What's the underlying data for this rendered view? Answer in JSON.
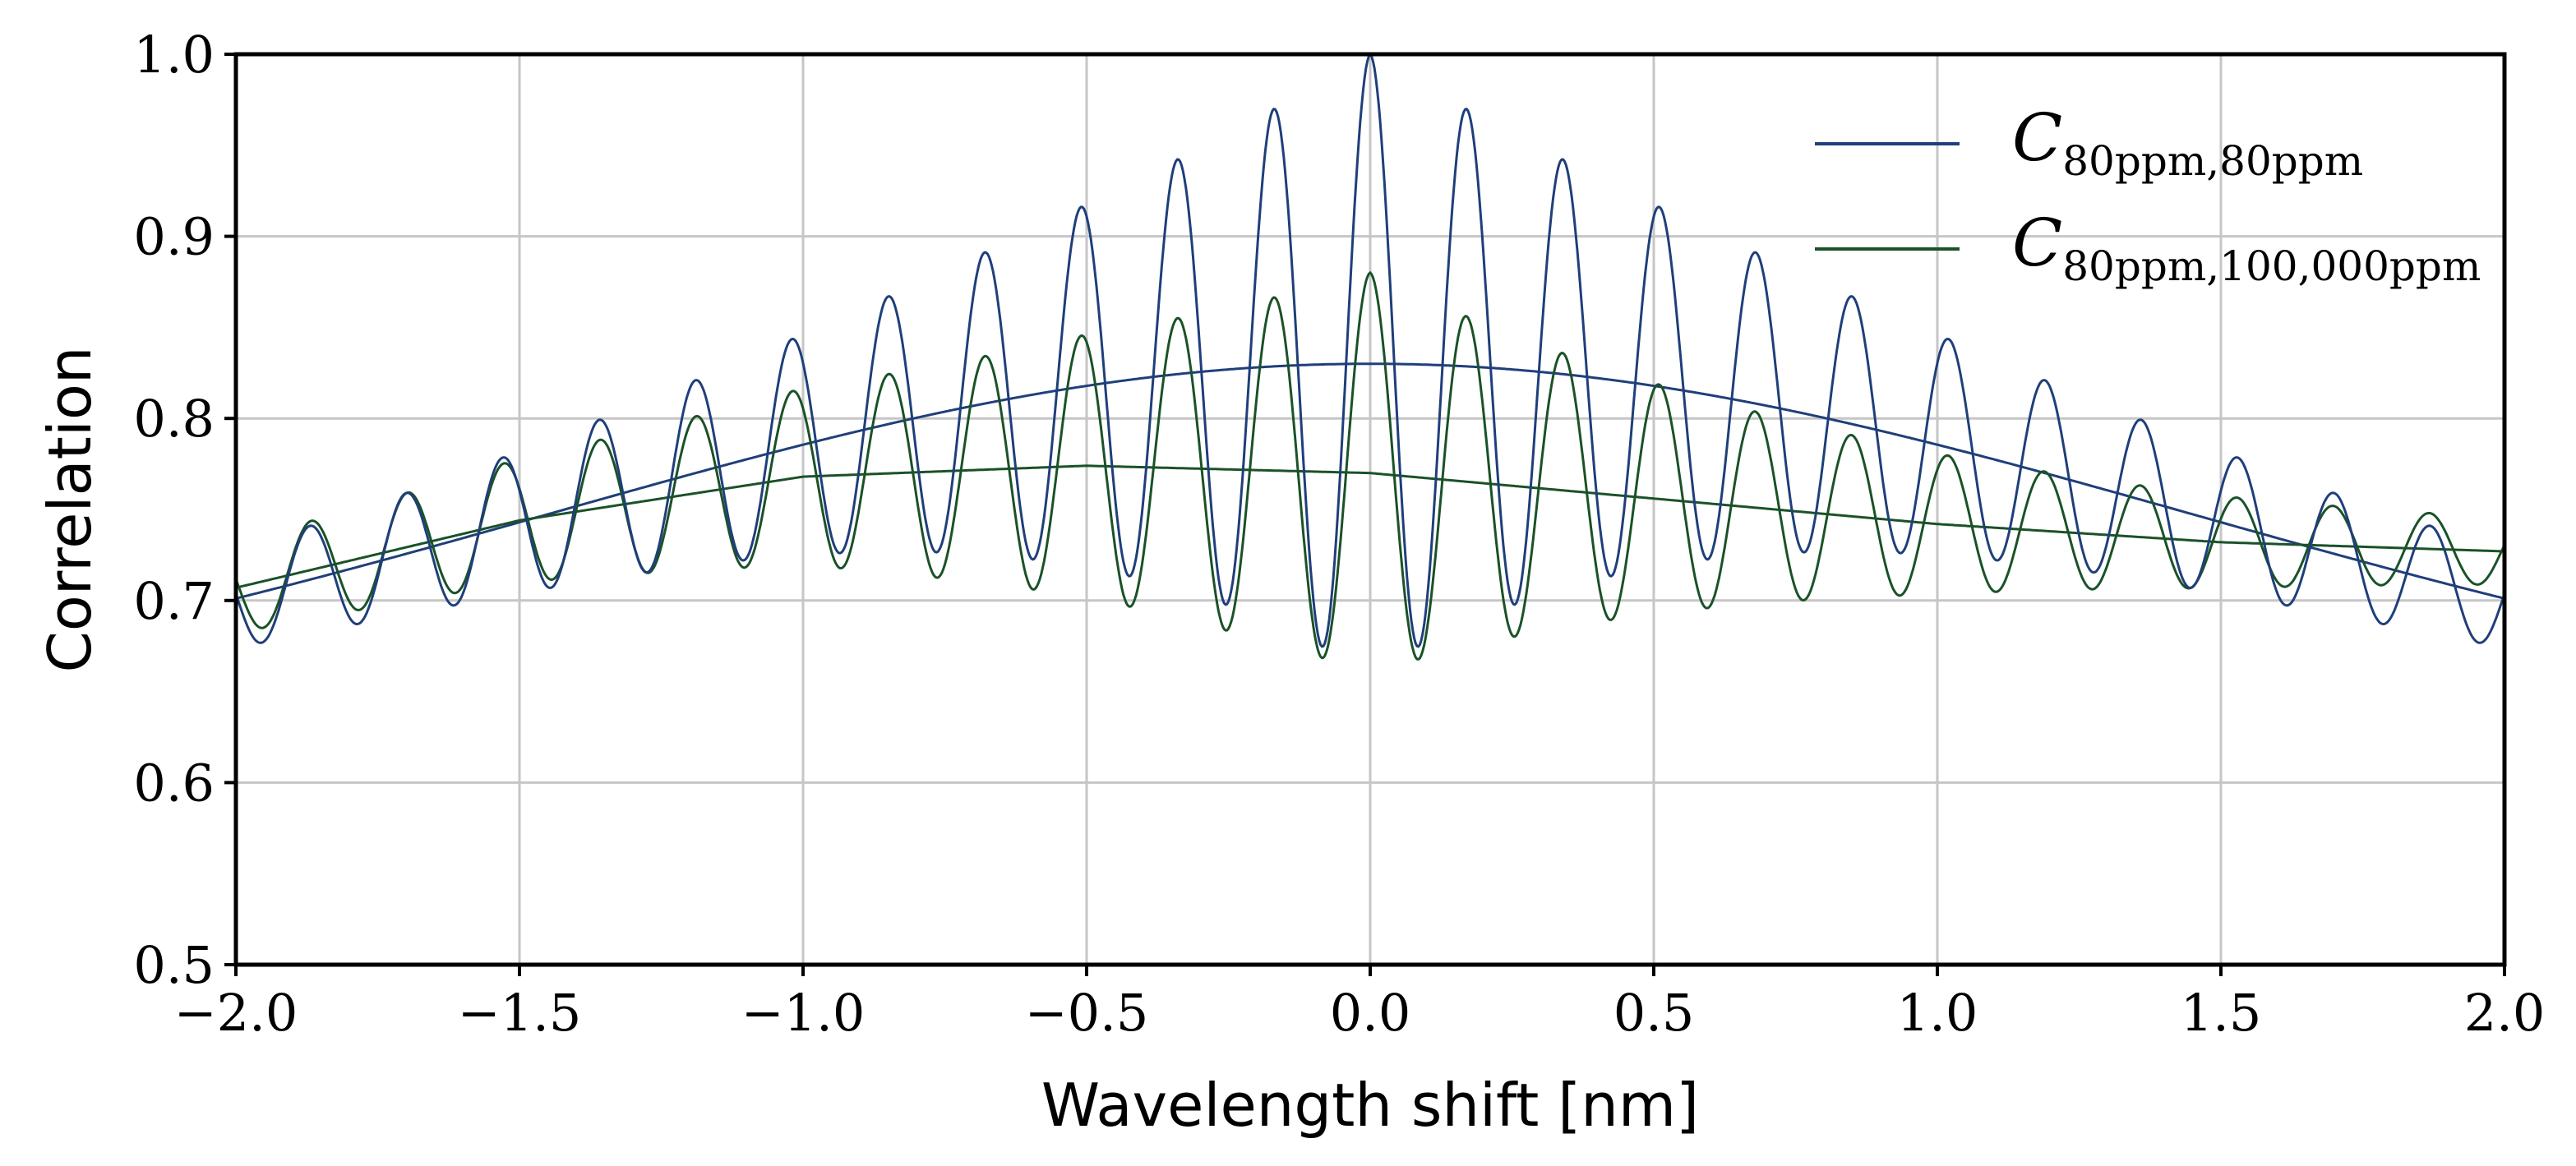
{
  "chart_data": {
    "type": "line",
    "title": "",
    "xlabel": "Wavelength shift [nm]",
    "ylabel": "Correlation",
    "xlim": [
      -2.0,
      2.0
    ],
    "ylim": [
      0.5,
      1.0
    ],
    "grid": true,
    "legend_position": "top-right",
    "xticks": [
      -2.0,
      -1.5,
      -1.0,
      -0.5,
      0.0,
      0.5,
      1.0,
      1.5,
      2.0
    ],
    "xtick_labels": [
      "−2.0",
      "−1.5",
      "−1.0",
      "−0.5",
      "0.0",
      "0.5",
      "1.0",
      "1.5",
      "2.0"
    ],
    "yticks": [
      0.5,
      0.6,
      0.7,
      0.8,
      0.9,
      1.0
    ],
    "ytick_labels": [
      "0.5",
      "0.6",
      "0.7",
      "0.8",
      "0.9",
      "1.0"
    ],
    "series": [
      {
        "name": "C_{80ppm,80ppm}",
        "legend_main": "C",
        "legend_sub": "80ppm,80ppm",
        "color": "#1f3f7a",
        "curve": {
          "oscillation_period_nm": 0.17,
          "envelope_peak": 0.83,
          "envelope_sigma_nm": 1.45,
          "envelope_floor": 0.62,
          "peak_value": 1.0,
          "oscillation_decay_nm": 0.85,
          "edge_amplitude": 0.012
        },
        "envelope": {
          "x": [
            -2.0,
            -1.5,
            -1.0,
            -0.5,
            0.0,
            0.5,
            1.0,
            1.5,
            2.0
          ],
          "y": [
            0.703,
            0.744,
            0.785,
            0.818,
            0.832,
            0.818,
            0.785,
            0.744,
            0.703
          ]
        }
      },
      {
        "name": "C_{80ppm,100,000ppm}",
        "legend_main": "C",
        "legend_sub": "80ppm,100,000ppm",
        "color": "#1a5228",
        "curve": {
          "oscillation_period_nm": 0.17,
          "center_value": 0.88,
          "first_minimum": 0.695,
          "envelope": {
            "x": [
              -2.0,
              -1.5,
              -1.0,
              -0.5,
              0.0,
              0.5,
              1.0,
              1.5,
              2.0
            ],
            "y": [
              0.707,
              0.744,
              0.768,
              0.774,
              0.77,
              0.756,
              0.742,
              0.732,
              0.727
            ]
          }
        }
      }
    ]
  }
}
